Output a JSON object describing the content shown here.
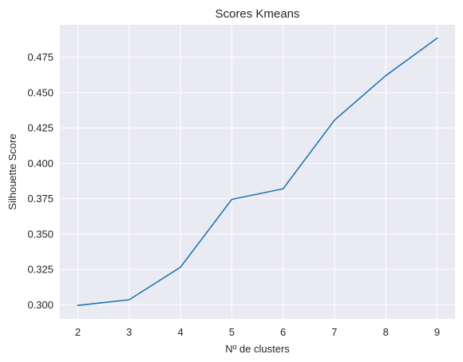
{
  "chart_data": {
    "type": "line",
    "title": "Scores Kmeans",
    "xlabel": "Nº de clusters",
    "ylabel": "Silhouette Score",
    "x": [
      2,
      3,
      4,
      5,
      6,
      7,
      8,
      9
    ],
    "series": [
      {
        "values": [
          0.2995,
          0.3035,
          0.3265,
          0.3745,
          0.382,
          0.4305,
          0.462,
          0.4885
        ],
        "color": "#1f77b4"
      }
    ],
    "xticks": [
      "2",
      "3",
      "4",
      "5",
      "6",
      "7",
      "8",
      "9"
    ],
    "yticks": [
      "0.300",
      "0.325",
      "0.350",
      "0.375",
      "0.400",
      "0.425",
      "0.450",
      "0.475"
    ],
    "xlim": [
      1.65,
      9.35
    ],
    "ylim": [
      0.29,
      0.498
    ],
    "grid": true,
    "style": {
      "plot_background": "#eaeaf2",
      "grid_color": "#ffffff"
    }
  }
}
